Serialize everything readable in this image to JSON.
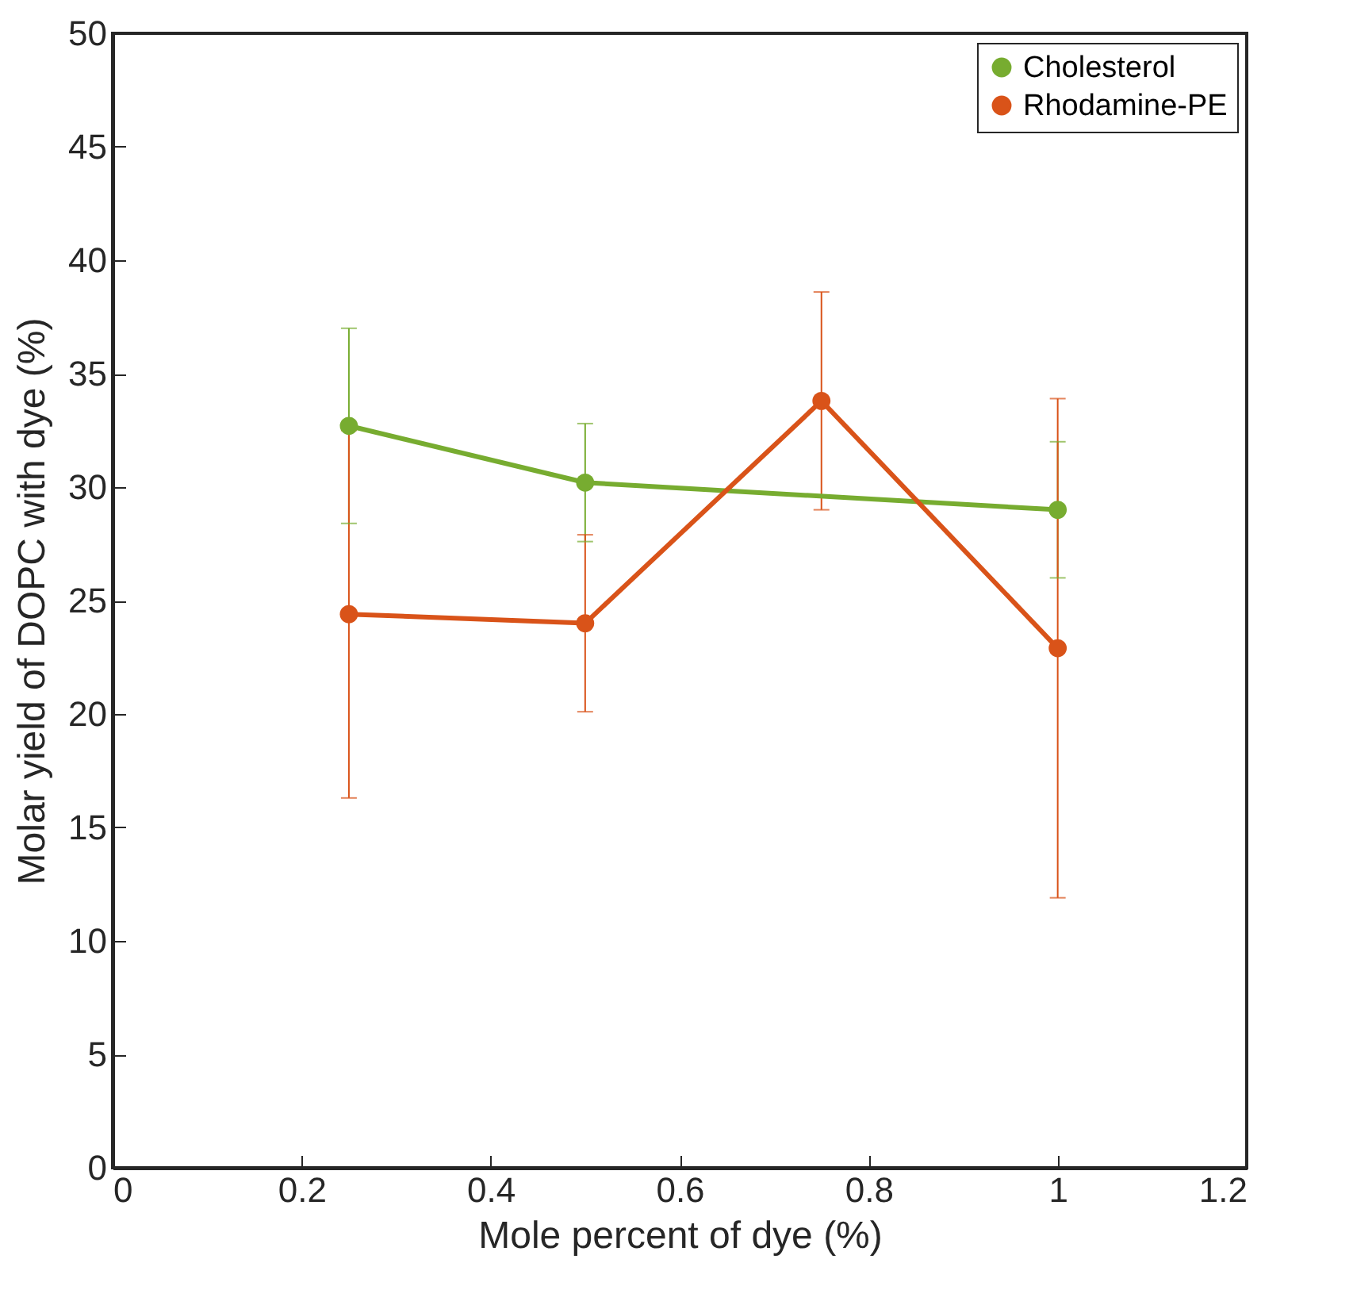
{
  "chart_data": {
    "type": "line",
    "xlabel": "Mole percent of dye (%)",
    "ylabel": "Molar yield of DOPC with dye (%)",
    "xlim": [
      0,
      1.2
    ],
    "xticks": [
      0,
      0.2,
      0.4,
      0.6,
      0.8,
      1,
      1.2
    ],
    "ylim": [
      0,
      50
    ],
    "yticks": [
      0,
      5,
      10,
      15,
      20,
      25,
      30,
      35,
      40,
      45,
      50
    ],
    "grid": false,
    "legend": "top right",
    "marker": "circle",
    "line_style": "solid",
    "series": [
      {
        "name": "Cholesterol",
        "color": "#77ac30",
        "x": [
          0.25,
          0.5,
          1
        ],
        "values": [
          32.7,
          30.2,
          29.0
        ],
        "errors": [
          4.3,
          2.6,
          3.0
        ]
      },
      {
        "name": "Rhodamine-PE",
        "color": "#d95319",
        "x": [
          0.25,
          0.5,
          0.75,
          1
        ],
        "values": [
          24.4,
          24.0,
          33.8,
          22.9
        ],
        "errors": [
          8.1,
          3.9,
          4.8,
          11.0
        ]
      }
    ]
  }
}
